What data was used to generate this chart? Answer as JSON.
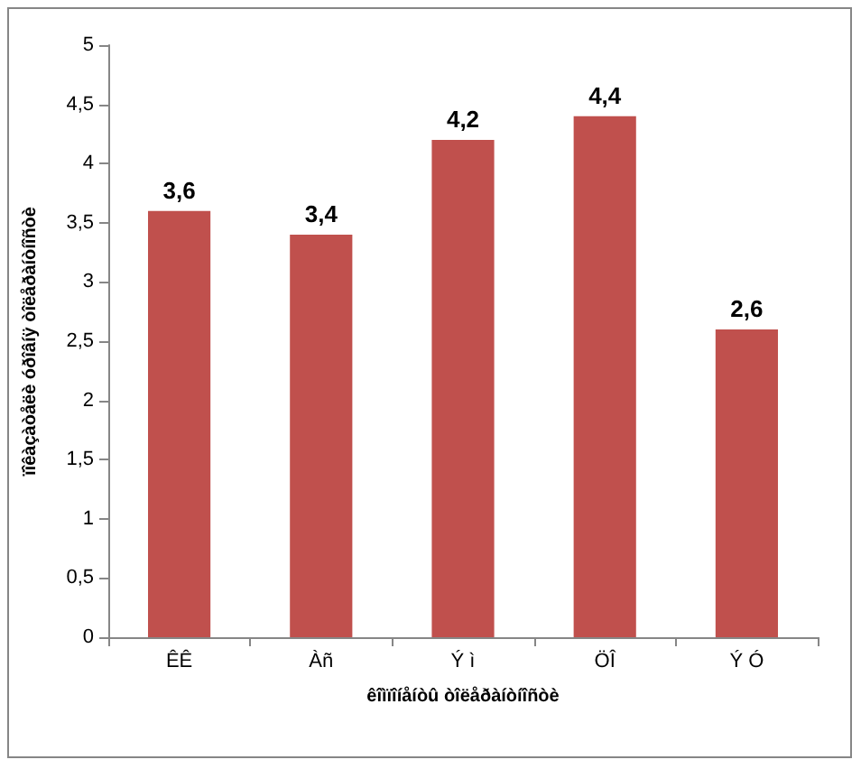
{
  "chart_data": {
    "type": "bar",
    "xlabel": "êîìïîíåíòû òîëåðàíòíîñòè",
    "ylabel": "ïîêàçàòåëè óðîâíÿ òîëåðàíòíîñòè",
    "categories": [
      "ÊÊ",
      "Àñ",
      "Ý ì",
      "ÖÎ",
      "Ý Ó"
    ],
    "values": [
      3.6,
      3.4,
      4.2,
      4.4,
      2.6
    ],
    "value_labels": [
      "3,6",
      "3,4",
      "4,2",
      "4,4",
      "2,6"
    ],
    "color": "#c0504d",
    "ylim": [
      0,
      5
    ],
    "yticks": [
      0,
      {
        "value": 0.5,
        "label": "0,5"
      },
      1,
      {
        "value": 1.5,
        "label": "1,5"
      },
      2,
      {
        "value": 2.5,
        "label": "2,5"
      },
      3,
      {
        "value": 3.5,
        "label": "3,5"
      },
      4,
      {
        "value": 4.5,
        "label": "4,5"
      },
      5
    ],
    "grid": false
  }
}
